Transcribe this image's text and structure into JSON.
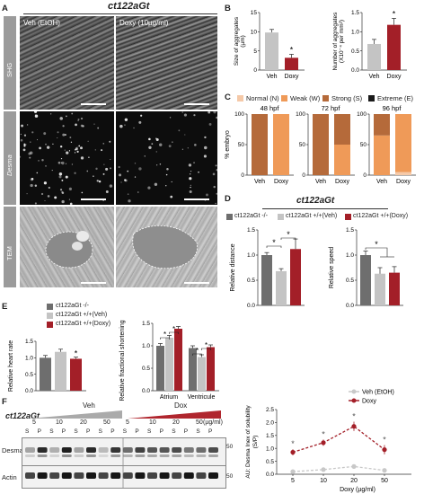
{
  "panelA": {
    "letter": "A",
    "title": "ct122aGt",
    "cond_left": "Veh (EtOH)",
    "cond_right": "Doxy (10µg/ml)",
    "row_labels": [
      "SHG",
      "Desma",
      "TEM"
    ]
  },
  "panelB": {
    "letter": "B",
    "chart1": {
      "ylabel_line1": "Size of aggregates",
      "ylabel_line2": "(µm)",
      "ticks": [
        "0",
        "5",
        "10",
        "15"
      ]
    },
    "chart2": {
      "ylabel_line1": "Number of aggregates",
      "ylabel_line2": "(X10⁻⁴ per mm²)",
      "ticks": [
        "0.0",
        "0.5",
        "1.0",
        "1.5"
      ]
    },
    "xcat": [
      "Veh",
      "Doxy"
    ],
    "star": "*"
  },
  "panelC": {
    "letter": "C",
    "legend": [
      "Normal (N)",
      "Weak (W)",
      "Strong (S)",
      "Extreme (E)"
    ],
    "legend_colors": [
      "#f5c9a8",
      "#ef9a58",
      "#b56a3a",
      "#1a1a1a"
    ],
    "ylabel": "% embryo",
    "ticks": [
      "0",
      "50",
      "100"
    ],
    "titles": [
      "48 hpf",
      "72 hpf",
      "96 hpf"
    ],
    "xcat": [
      "Veh",
      "Doxy"
    ]
  },
  "panelD": {
    "letter": "D",
    "title": "ct122aGt",
    "legend": [
      "ct122aGt -/-",
      "ct122aGt +/+(Veh)",
      "ct122aGt +/+(Doxy)"
    ],
    "ylabel1": "Relative distance",
    "ylabel2": "Relative speed",
    "ticks1": [
      "0.0",
      "0.5",
      "1.0",
      "1.5"
    ],
    "ticks2": [
      "0.0",
      "0.5",
      "1.0",
      "1.5"
    ]
  },
  "panelE": {
    "letter": "E",
    "legend": [
      "ct122aGt -/-",
      "ct122aGt +/+(Veh)",
      "ct122aGt +/+(Doxy)"
    ],
    "ylabel1": "Relative heart rate",
    "ylabel2": "Relative fractional shortening",
    "ticks1": [
      "0.0",
      "0.5",
      "1.0",
      "1.5"
    ],
    "ticks2": [
      "0.0",
      "0.5",
      "1.0",
      "1.5"
    ],
    "xcat2": [
      "Atrium",
      "Ventricule"
    ]
  },
  "panelF": {
    "letter": "F",
    "title": "ct122aGt",
    "veh": "Veh",
    "dox": "Dox",
    "conc": [
      "5",
      "10",
      "20",
      "50",
      "5",
      "10",
      "20",
      "50"
    ],
    "unit": "(µg/ml)",
    "sp": [
      "S",
      "P",
      "S",
      "P",
      "S",
      "P",
      "S",
      "P",
      "S",
      "P",
      "S",
      "P",
      "S",
      "P",
      "S",
      "P"
    ],
    "bands": [
      "Desma",
      "Actin"
    ],
    "mw": [
      "50",
      "50"
    ],
    "legend": [
      "Veh (EtOH)",
      "Doxy"
    ],
    "ylabel_line1": "AU: Desma Inex of solubility",
    "ylabel_line2": "(S/P)",
    "xlabel": "Doxy (µg/ml)",
    "xticks": [
      "5",
      "10",
      "20",
      "50"
    ],
    "yticks": [
      "0.0",
      "0.5",
      "1.0",
      "1.5",
      "2.0",
      "2.5"
    ]
  },
  "colors": {
    "dark": "#6e6e6e",
    "light": "#c4c4c4",
    "red": "#a31f28"
  },
  "chart_data": [
    {
      "type": "bar",
      "title": "",
      "categories": [
        "Veh",
        "Doxy"
      ],
      "values": [
        9.8,
        3.2
      ],
      "errors": [
        0.8,
        0.9
      ],
      "ylabel": "Size of aggregates (µm)",
      "ylim": [
        0,
        15
      ]
    },
    {
      "type": "bar",
      "title": "",
      "categories": [
        "Veh",
        "Doxy"
      ],
      "values": [
        0.68,
        1.18
      ],
      "errors": [
        0.12,
        0.17
      ],
      "ylabel": "Number of aggregates (X10⁻⁴ per mm²)",
      "ylim": [
        0,
        1.5
      ]
    },
    {
      "type": "bar",
      "title": "48 hpf",
      "categories": [
        "Veh",
        "Doxy"
      ],
      "series": [
        {
          "name": "Weak (W)",
          "values": [
            0,
            100
          ]
        },
        {
          "name": "Strong (S)",
          "values": [
            100,
            0
          ]
        }
      ],
      "ylim": [
        0,
        100
      ]
    },
    {
      "type": "bar",
      "title": "72 hpf",
      "categories": [
        "Veh",
        "Doxy"
      ],
      "series": [
        {
          "name": "Weak (W)",
          "values": [
            0,
            50
          ]
        },
        {
          "name": "Strong (S)",
          "values": [
            100,
            50
          ]
        }
      ],
      "ylim": [
        0,
        100
      ]
    },
    {
      "type": "bar",
      "title": "96 hpf",
      "categories": [
        "Veh",
        "Doxy"
      ],
      "series": [
        {
          "name": "Normal (N)",
          "values": [
            0,
            5
          ]
        },
        {
          "name": "Weak (W)",
          "values": [
            65,
            95
          ]
        },
        {
          "name": "Strong (S)",
          "values": [
            35,
            0
          ]
        }
      ],
      "ylim": [
        0,
        100
      ]
    },
    {
      "type": "bar",
      "title": "",
      "categories": [
        "ct122aGt -/-",
        "ct122aGt +/+(Veh)",
        "ct122aGt +/+(Doxy)"
      ],
      "values": [
        1.0,
        0.68,
        1.12
      ],
      "errors": [
        0.05,
        0.05,
        0.2
      ],
      "ylabel": "Relative distance",
      "ylim": [
        0,
        1.5
      ]
    },
    {
      "type": "bar",
      "title": "",
      "categories": [
        "ct122aGt -/-",
        "ct122aGt +/+(Veh)",
        "ct122aGt +/+(Doxy)"
      ],
      "values": [
        1.0,
        0.63,
        0.65
      ],
      "errors": [
        0.08,
        0.12,
        0.12
      ],
      "ylabel": "Relative speed",
      "ylim": [
        0,
        1.5
      ]
    },
    {
      "type": "bar",
      "title": "",
      "categories": [
        "ct122aGt -/-",
        "ct122aGt +/+(Veh)",
        "ct122aGt +/+(Doxy)"
      ],
      "values": [
        1.0,
        1.18,
        0.97
      ],
      "errors": [
        0.07,
        0.08,
        0.05
      ],
      "ylabel": "Relative heart rate",
      "ylim": [
        0,
        1.5
      ]
    },
    {
      "type": "bar",
      "title": "",
      "categories": [
        "Atrium",
        "Ventricule"
      ],
      "series": [
        {
          "name": "ct122aGt -/-",
          "values": [
            1.0,
            0.95
          ]
        },
        {
          "name": "ct122aGt +/+(Veh)",
          "values": [
            1.18,
            0.75
          ]
        },
        {
          "name": "ct122aGt +/+(Doxy)",
          "values": [
            1.38,
            0.97
          ]
        }
      ],
      "ylabel": "Relative fractional shortening",
      "ylim": [
        0,
        1.5
      ]
    },
    {
      "type": "line",
      "title": "",
      "x": [
        "5",
        "10",
        "20",
        "50"
      ],
      "series": [
        {
          "name": "Veh (EtOH)",
          "values": [
            0.1,
            0.18,
            0.3,
            0.15
          ]
        },
        {
          "name": "Doxy",
          "values": [
            0.85,
            1.22,
            1.85,
            0.95
          ]
        }
      ],
      "xlabel": "Doxy (µg/ml)",
      "ylabel": "AU: Desma Inex of solubility (S/P)",
      "ylim": [
        0,
        2.5
      ]
    }
  ]
}
